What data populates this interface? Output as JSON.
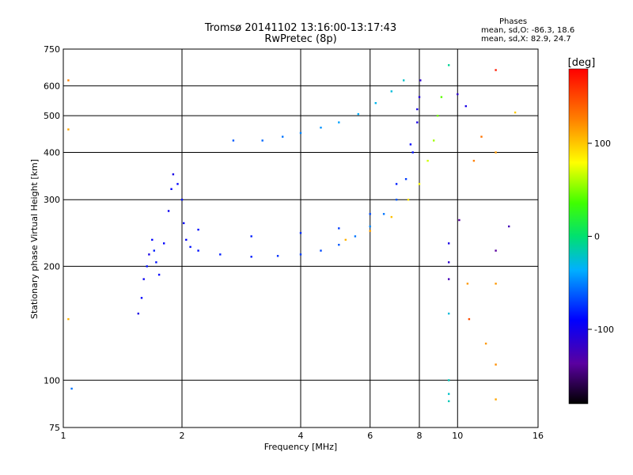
{
  "header": {
    "title": "Tromsø 20141102 13:16:00-13:17:43",
    "subtitle": "RwPretec (8p)"
  },
  "phases": {
    "heading": "Phases",
    "line_o": "mean, sd,O: -86.3, 18.6",
    "line_x": "mean, sd,X:  82.9, 24.7"
  },
  "colorbar": {
    "label": "[deg]",
    "ticks": [
      100,
      0,
      -100
    ],
    "range": [
      -180,
      180
    ]
  },
  "chart_data": {
    "type": "scatter",
    "xlabel": "Frequency [MHz]",
    "ylabel": "Stationary phase Virtual Height [km]",
    "xscale": "log",
    "yscale": "log",
    "xlim": [
      1,
      16
    ],
    "ylim": [
      75,
      750
    ],
    "xticks": [
      1,
      2,
      4,
      6,
      8,
      10,
      16
    ],
    "yticks": [
      75,
      100,
      200,
      300,
      400,
      500,
      600,
      750
    ],
    "grid": true,
    "series": [
      {
        "trace": "o_low",
        "points": [
          [
            1.55,
            150,
            -110
          ],
          [
            1.58,
            165,
            -100
          ],
          [
            1.6,
            185,
            -105
          ],
          [
            1.63,
            200,
            -95
          ],
          [
            1.65,
            215,
            -110
          ],
          [
            1.68,
            235,
            -100
          ],
          [
            1.7,
            220,
            -90
          ],
          [
            1.72,
            205,
            -95
          ],
          [
            1.75,
            190,
            -100
          ]
        ]
      },
      {
        "trace": "o_rise",
        "points": [
          [
            1.8,
            230,
            -100
          ],
          [
            1.85,
            280,
            -105
          ],
          [
            1.88,
            320,
            -100
          ],
          [
            1.9,
            350,
            -110
          ],
          [
            1.95,
            330,
            -100
          ],
          [
            2.0,
            300,
            -95
          ],
          [
            2.02,
            260,
            -100
          ],
          [
            2.05,
            235,
            -100
          ],
          [
            2.1,
            225,
            -95
          ]
        ]
      },
      {
        "trace": "o_main",
        "points": [
          [
            2.2,
            220,
            -95
          ],
          [
            2.5,
            215,
            -90
          ],
          [
            3.0,
            212,
            -90
          ],
          [
            3.5,
            213,
            -85
          ],
          [
            4.0,
            215,
            -80
          ],
          [
            4.5,
            220,
            -75
          ],
          [
            5.0,
            228,
            -70
          ],
          [
            5.5,
            240,
            -60
          ],
          [
            6.0,
            255,
            -55
          ],
          [
            6.5,
            275,
            -60
          ],
          [
            7.0,
            300,
            -70
          ],
          [
            7.4,
            340,
            -80
          ],
          [
            7.7,
            400,
            -95
          ],
          [
            7.9,
            480,
            -110
          ],
          [
            8.0,
            560,
            -115
          ],
          [
            8.05,
            620,
            -120
          ]
        ]
      },
      {
        "trace": "o_upper",
        "points": [
          [
            2.2,
            250,
            -95
          ],
          [
            3.0,
            240,
            -90
          ],
          [
            4.0,
            245,
            -85
          ],
          [
            5.0,
            252,
            -80
          ],
          [
            6.0,
            275,
            -75
          ],
          [
            7.0,
            330,
            -90
          ],
          [
            7.6,
            420,
            -100
          ],
          [
            7.9,
            520,
            -110
          ]
        ]
      },
      {
        "trace": "x_main",
        "points": [
          [
            5.2,
            235,
            110
          ],
          [
            6.0,
            248,
            115
          ],
          [
            6.8,
            270,
            105
          ],
          [
            7.5,
            300,
            90
          ],
          [
            8.0,
            330,
            80
          ],
          [
            8.4,
            380,
            70
          ],
          [
            8.7,
            430,
            60
          ],
          [
            8.9,
            500,
            50
          ],
          [
            9.1,
            560,
            45
          ]
        ]
      },
      {
        "trace": "spread",
        "points": [
          [
            2.7,
            430,
            -70
          ],
          [
            3.2,
            430,
            -65
          ],
          [
            3.6,
            440,
            -60
          ],
          [
            4.0,
            450,
            -55
          ],
          [
            4.5,
            465,
            -50
          ],
          [
            5.0,
            480,
            -45
          ],
          [
            5.6,
            505,
            -40
          ],
          [
            6.2,
            540,
            -35
          ],
          [
            6.8,
            580,
            -30
          ],
          [
            7.3,
            620,
            -25
          ]
        ]
      },
      {
        "trace": "stray",
        "points": [
          [
            1.03,
            620,
            130
          ],
          [
            1.03,
            460,
            115
          ],
          [
            1.03,
            145,
            110
          ],
          [
            1.05,
            95,
            -60
          ],
          [
            9.5,
            680,
            -10
          ],
          [
            9.5,
            100,
            -20
          ],
          [
            9.5,
            92,
            -25
          ],
          [
            9.5,
            88,
            -20
          ],
          [
            9.5,
            150,
            -30
          ],
          [
            9.5,
            185,
            -130
          ],
          [
            9.5,
            205,
            -120
          ],
          [
            9.5,
            230,
            -110
          ],
          [
            10.0,
            570,
            -120
          ],
          [
            10.1,
            265,
            -140
          ],
          [
            10.5,
            530,
            -110
          ],
          [
            10.6,
            180,
            120
          ],
          [
            10.7,
            145,
            150
          ],
          [
            11.0,
            380,
            130
          ],
          [
            11.5,
            440,
            135
          ],
          [
            11.8,
            125,
            120
          ],
          [
            12.5,
            660,
            170
          ],
          [
            12.5,
            400,
            120
          ],
          [
            12.5,
            220,
            -140
          ],
          [
            12.5,
            180,
            120
          ],
          [
            12.5,
            110,
            125
          ],
          [
            12.5,
            89,
            115
          ],
          [
            13.5,
            255,
            -130
          ],
          [
            14.0,
            510,
            100
          ]
        ]
      }
    ]
  }
}
